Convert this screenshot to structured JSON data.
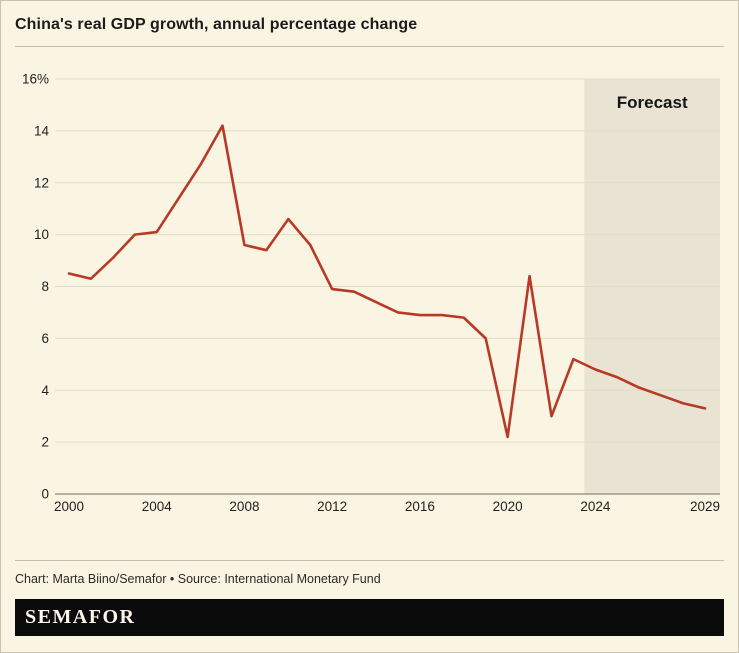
{
  "header": {
    "title": "China's real GDP growth, annual percentage change"
  },
  "footer": {
    "credit": "Chart: Marta Biino/Semafor • Source: International Monetary Fund",
    "brand": "SEMAFOR"
  },
  "colors": {
    "background": "#faf4e2",
    "line": "#b83a26",
    "grid": "#e3dcc5",
    "zero_line": "#8c887a",
    "forecast_band": "#e9e3d3",
    "text": "#1f1f1f",
    "brand_bar": "#0b0b0b"
  },
  "chart_data": {
    "type": "line",
    "title": "China's real GDP growth, annual percentage change",
    "xlabel": "",
    "ylabel": "",
    "xlim": [
      2000,
      2029
    ],
    "ylim": [
      0,
      16
    ],
    "x_ticks": [
      2000,
      2004,
      2008,
      2012,
      2016,
      2020,
      2024,
      2029
    ],
    "y_ticks": [
      0,
      2,
      4,
      6,
      8,
      10,
      12,
      14,
      16
    ],
    "y_tick_labels": [
      "0",
      "2",
      "4",
      "6",
      "8",
      "10",
      "12",
      "14",
      "16%"
    ],
    "grid": "horizontal",
    "legend": "none",
    "forecast": {
      "label": "Forecast",
      "start": 2023.5,
      "end": 2029
    },
    "series": [
      {
        "name": "China real GDP growth (%)",
        "x": [
          2000,
          2001,
          2002,
          2003,
          2004,
          2005,
          2006,
          2007,
          2008,
          2009,
          2010,
          2011,
          2012,
          2013,
          2014,
          2015,
          2016,
          2017,
          2018,
          2019,
          2020,
          2021,
          2022,
          2023,
          2024,
          2025,
          2026,
          2027,
          2028,
          2029
        ],
        "y": [
          8.5,
          8.3,
          9.1,
          10.0,
          10.1,
          11.4,
          12.7,
          14.2,
          9.6,
          9.4,
          10.6,
          9.6,
          7.9,
          7.8,
          7.4,
          7.0,
          6.9,
          6.9,
          6.8,
          6.0,
          2.2,
          8.4,
          3.0,
          5.2,
          4.8,
          4.5,
          4.1,
          3.8,
          3.5,
          3.3
        ]
      }
    ]
  }
}
